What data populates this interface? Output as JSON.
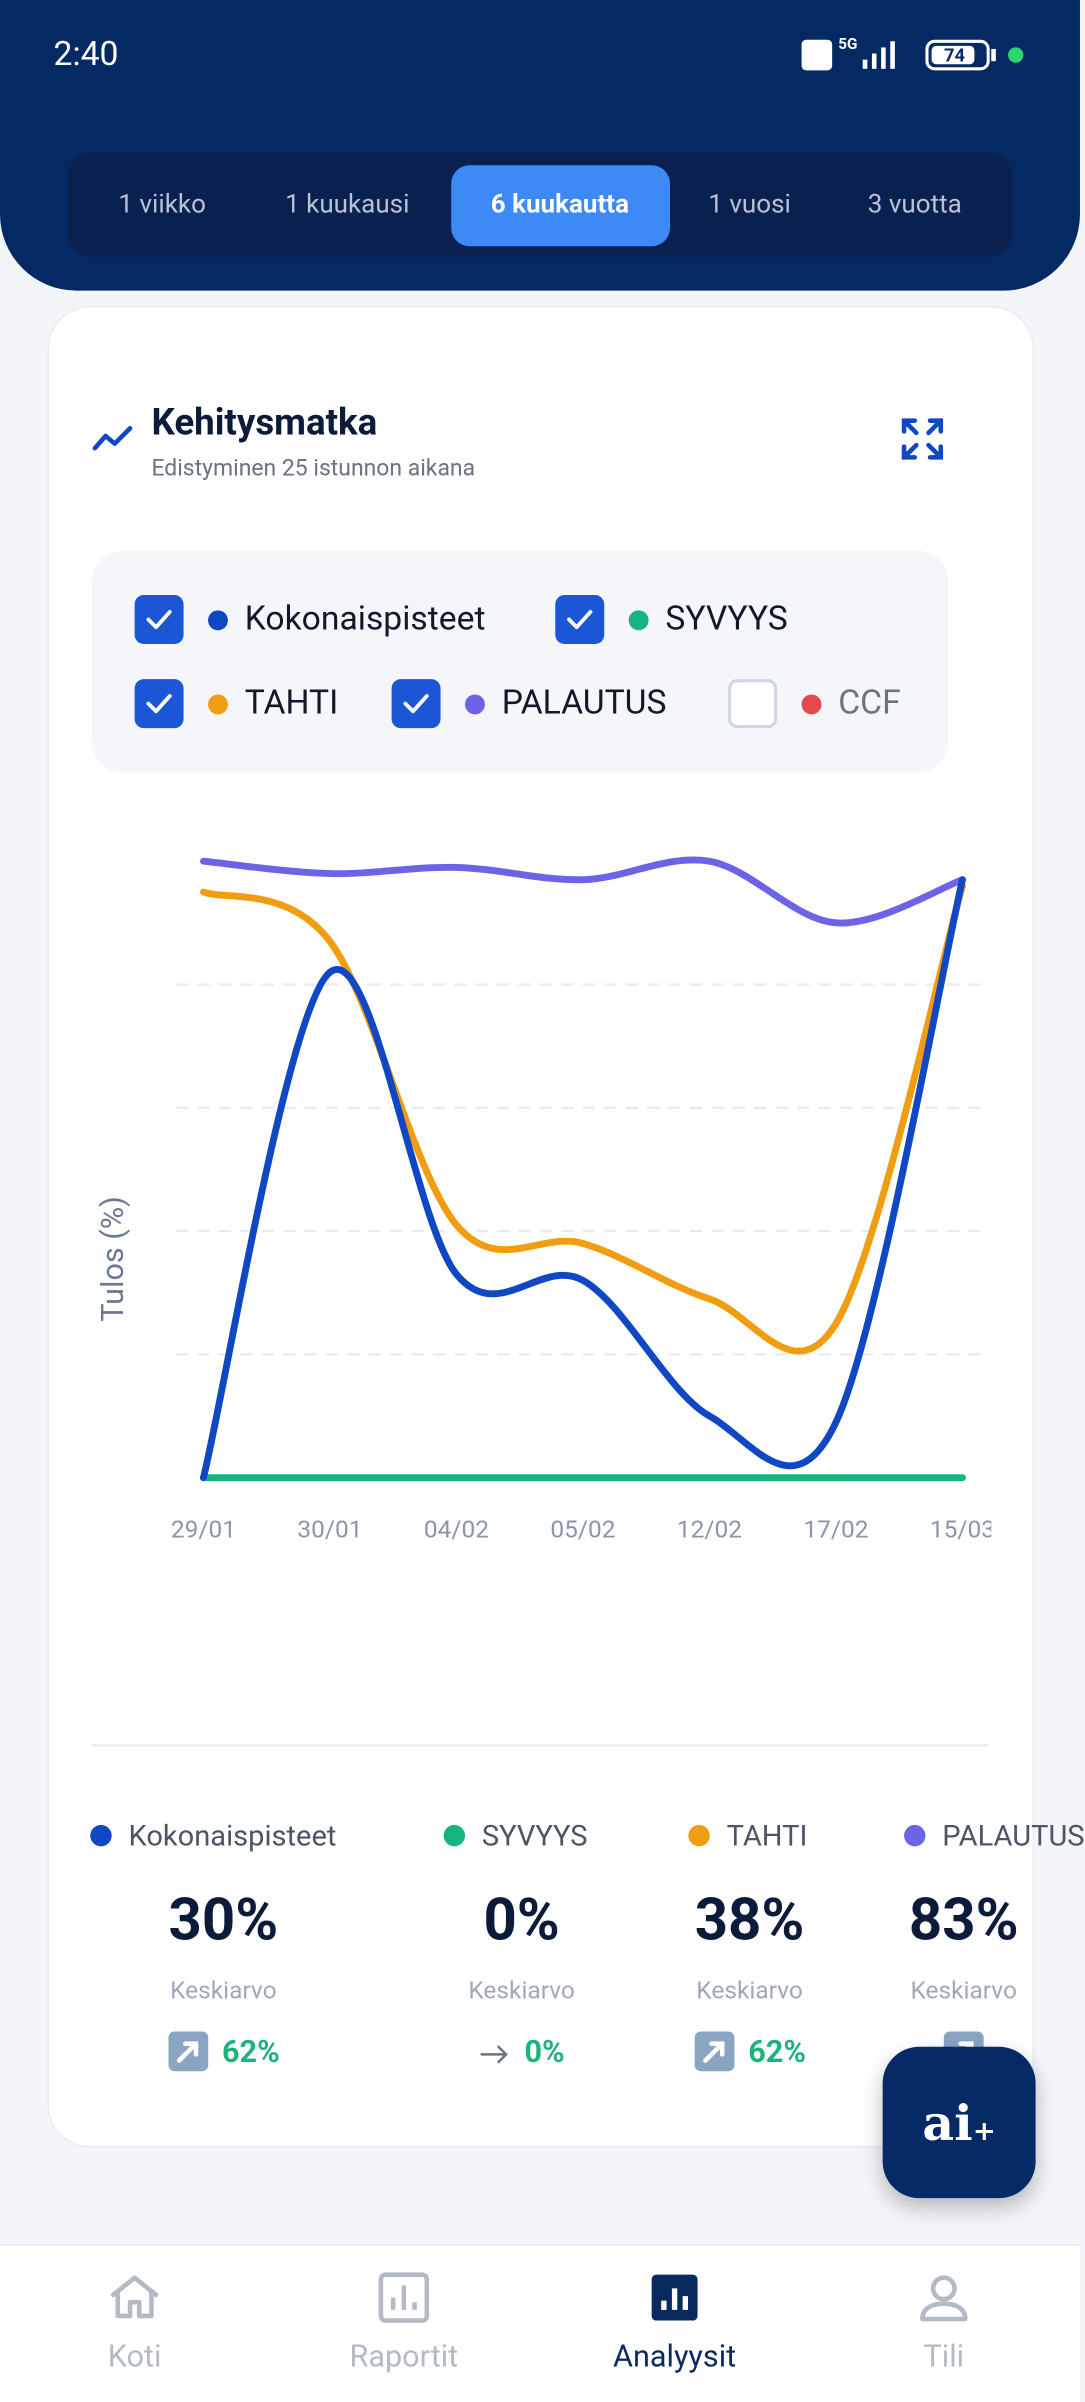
{
  "status_bar": {
    "time": "2:40",
    "battery": "74"
  },
  "tabs": {
    "items": [
      "1 viikko",
      "1 kuukausi",
      "6 kuukautta",
      "1 vuosi",
      "3 vuotta"
    ],
    "active": 2
  },
  "card": {
    "title": "Kehitysmatka",
    "subtitle": "Edistyminen 25 istunnon aikana"
  },
  "chart_data": {
    "type": "line",
    "y_label": "Tulos (%)",
    "categories": [
      "29/01",
      "30/01",
      "04/02",
      "05/02",
      "12/02",
      "17/02",
      "15/03"
    ],
    "ylim": [
      0,
      100
    ],
    "yticks": [
      20,
      40,
      60,
      80
    ],
    "grid": true,
    "series": [
      {
        "name": "Kokonaispisteet",
        "color": "#0f47c4",
        "checked": true,
        "values": [
          0,
          82,
          33,
          32,
          10,
          9,
          97
        ]
      },
      {
        "name": "SYVYYS",
        "color": "#16b57f",
        "checked": true,
        "values": [
          0,
          0,
          0,
          0,
          0,
          0,
          0
        ]
      },
      {
        "name": "TAHTI",
        "color": "#f19d12",
        "checked": true,
        "values": [
          95,
          87,
          41,
          38,
          29,
          25,
          96
        ]
      },
      {
        "name": "PALAUTUS",
        "color": "#6c63e6",
        "checked": true,
        "values": [
          100,
          98,
          99,
          97,
          100,
          90,
          97
        ]
      },
      {
        "name": "CCF",
        "color": "#e5484d",
        "checked": false,
        "values": [
          null,
          null,
          null,
          null,
          null,
          null,
          null
        ]
      }
    ]
  },
  "summary": [
    {
      "name": "Kokonaispisteet",
      "color": "#0f47c4",
      "value": "30%",
      "caption": "Keskiarvo",
      "trend": "up",
      "change": "62%"
    },
    {
      "name": "SYVYYS",
      "color": "#16b57f",
      "value": "0%",
      "caption": "Keskiarvo",
      "trend": "flat",
      "change": "0%"
    },
    {
      "name": "TAHTI",
      "color": "#f19d12",
      "value": "38%",
      "caption": "Keskiarvo",
      "trend": "up",
      "change": "62%"
    },
    {
      "name": "PALAUTUS",
      "color": "#6c63e6",
      "value": "83%",
      "caption": "Keskiarvo",
      "trend": "up"
    }
  ],
  "ai_button": {
    "text": "ai",
    "sup": "+"
  },
  "nav": {
    "items": [
      "Koti",
      "Raportit",
      "Analyysit",
      "Tili"
    ],
    "active": 2
  }
}
